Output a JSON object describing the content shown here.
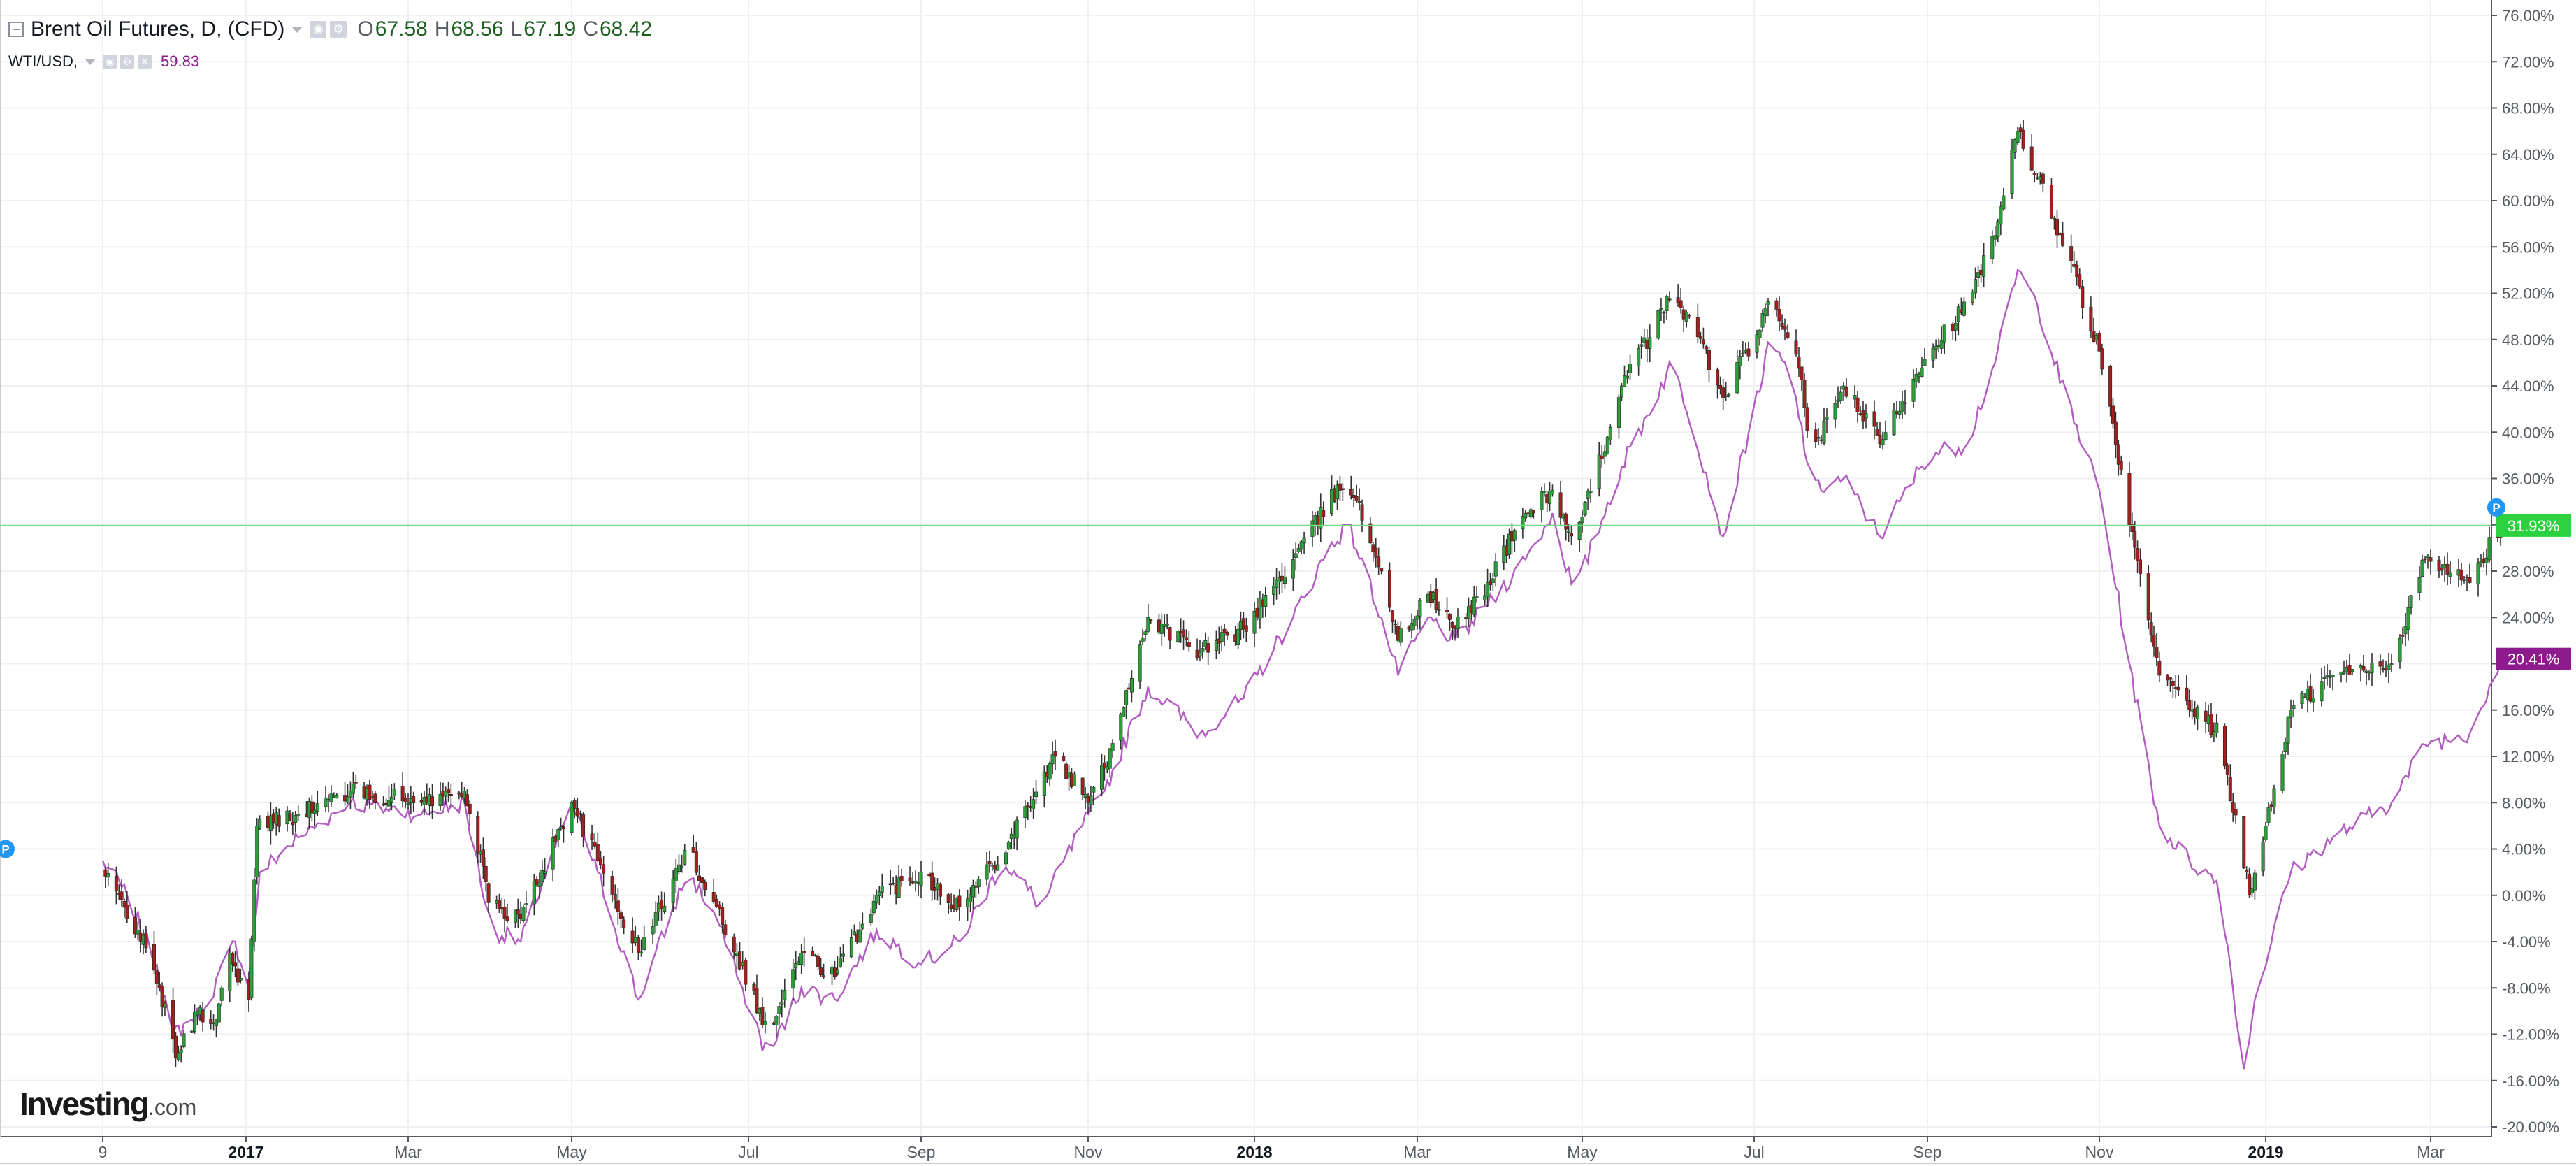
{
  "legend": {
    "main_title": "Brent Oil Futures, D, (CFD)",
    "ohlc": [
      {
        "key": "O",
        "value": "67.58"
      },
      {
        "key": "H",
        "value": "68.56"
      },
      {
        "key": "L",
        "value": "67.19"
      },
      {
        "key": "C",
        "value": "68.42"
      }
    ],
    "compare_title": "WTI/USD,",
    "compare_value": "59.83"
  },
  "logo": {
    "name": "Investing",
    "domain": ".com"
  },
  "colors": {
    "up": "#2e9e3b",
    "down": "#a31f1f",
    "wick": "#333333",
    "compare_line": "#b25bc0",
    "price_line": "#6fe07c",
    "price_badge": "#2bd13e",
    "compare_badge": "#8e1b8e",
    "grid": "#eef0f3"
  },
  "chart_data": {
    "type": "line",
    "title": "Brent Oil Futures, D, (CFD)",
    "y_axis": {
      "position": "right",
      "unit": "%",
      "range": [
        -20,
        76
      ],
      "ticks": [
        "76.00%",
        "72.00%",
        "68.00%",
        "64.00%",
        "60.00%",
        "56.00%",
        "52.00%",
        "48.00%",
        "44.00%",
        "40.00%",
        "36.00%",
        "32.00%",
        "28.00%",
        "24.00%",
        "20.00%",
        "16.00%",
        "12.00%",
        "8.00%",
        "4.00%",
        "0.00%",
        "-4.00%",
        "-8.00%",
        "-12.00%",
        "-16.00%",
        "-20.00%"
      ]
    },
    "x_axis": {
      "ticks": [
        {
          "label": "9",
          "bold": false
        },
        {
          "label": "2017",
          "bold": true
        },
        {
          "label": "Mar",
          "bold": false
        },
        {
          "label": "May",
          "bold": false
        },
        {
          "label": "Jul",
          "bold": false
        },
        {
          "label": "Sep",
          "bold": false
        },
        {
          "label": "Nov",
          "bold": false
        },
        {
          "label": "2018",
          "bold": true
        },
        {
          "label": "Mar",
          "bold": false
        },
        {
          "label": "May",
          "bold": false
        },
        {
          "label": "Jul",
          "bold": false
        },
        {
          "label": "Sep",
          "bold": false
        },
        {
          "label": "Nov",
          "bold": false
        },
        {
          "label": "2019",
          "bold": true
        },
        {
          "label": "Mar",
          "bold": false
        }
      ]
    },
    "grid": true,
    "series": [
      {
        "name": "Brent Oil Futures, D, (CFD)",
        "style": "candlestick",
        "key_points": [
          {
            "x": "2016-11-09",
            "y": 2
          },
          {
            "x": "2016-11-22",
            "y": -3
          },
          {
            "x": "2016-11-30",
            "y": -8
          },
          {
            "x": "2016-12-06",
            "y": -14
          },
          {
            "x": "2016-12-14",
            "y": -10
          },
          {
            "x": "2016-12-20",
            "y": -11
          },
          {
            "x": "2016-12-26",
            "y": -5
          },
          {
            "x": "2017-01-02",
            "y": -9
          },
          {
            "x": "2017-01-05",
            "y": 6
          },
          {
            "x": "2017-01-20",
            "y": 7
          },
          {
            "x": "2017-02-08",
            "y": 9
          },
          {
            "x": "2017-03-06",
            "y": 8
          },
          {
            "x": "2017-03-22",
            "y": 9
          },
          {
            "x": "2017-04-01",
            "y": -1
          },
          {
            "x": "2017-04-12",
            "y": -2
          },
          {
            "x": "2017-05-01",
            "y": 8
          },
          {
            "x": "2017-05-10",
            "y": 3
          },
          {
            "x": "2017-05-24",
            "y": -5
          },
          {
            "x": "2017-06-10",
            "y": 4
          },
          {
            "x": "2017-06-20",
            "y": -1
          },
          {
            "x": "2017-06-27",
            "y": -5
          },
          {
            "x": "2017-07-08",
            "y": -12
          },
          {
            "x": "2017-07-20",
            "y": -5
          },
          {
            "x": "2017-08-01",
            "y": -7
          },
          {
            "x": "2017-08-16",
            "y": 0
          },
          {
            "x": "2017-09-01",
            "y": 2
          },
          {
            "x": "2017-09-15",
            "y": -1
          },
          {
            "x": "2017-10-01",
            "y": 4
          },
          {
            "x": "2017-10-20",
            "y": 12
          },
          {
            "x": "2017-11-01",
            "y": 8
          },
          {
            "x": "2017-11-07",
            "y": 11
          },
          {
            "x": "2017-11-23",
            "y": 24
          },
          {
            "x": "2017-12-12",
            "y": 21
          },
          {
            "x": "2017-12-28",
            "y": 23
          },
          {
            "x": "2018-01-15",
            "y": 29
          },
          {
            "x": "2018-01-28",
            "y": 34
          },
          {
            "x": "2018-02-04",
            "y": 36
          },
          {
            "x": "2018-02-16",
            "y": 28
          },
          {
            "x": "2018-02-22",
            "y": 22
          },
          {
            "x": "2018-03-05",
            "y": 26
          },
          {
            "x": "2018-03-15",
            "y": 23
          },
          {
            "x": "2018-03-27",
            "y": 27
          },
          {
            "x": "2018-04-10",
            "y": 33
          },
          {
            "x": "2018-04-20",
            "y": 35
          },
          {
            "x": "2018-04-28",
            "y": 30
          },
          {
            "x": "2018-05-15",
            "y": 44
          },
          {
            "x": "2018-06-02",
            "y": 52
          },
          {
            "x": "2018-06-10",
            "y": 49
          },
          {
            "x": "2018-06-20",
            "y": 43
          },
          {
            "x": "2018-07-07",
            "y": 51
          },
          {
            "x": "2018-07-15",
            "y": 48
          },
          {
            "x": "2018-07-22",
            "y": 38
          },
          {
            "x": "2018-08-02",
            "y": 44
          },
          {
            "x": "2018-08-15",
            "y": 39
          },
          {
            "x": "2018-09-01",
            "y": 47
          },
          {
            "x": "2018-09-15",
            "y": 51
          },
          {
            "x": "2018-09-25",
            "y": 57
          },
          {
            "x": "2018-10-03",
            "y": 66
          },
          {
            "x": "2018-10-10",
            "y": 62
          },
          {
            "x": "2018-10-20",
            "y": 56
          },
          {
            "x": "2018-11-01",
            "y": 47
          },
          {
            "x": "2018-11-12",
            "y": 32
          },
          {
            "x": "2018-11-23",
            "y": 19
          },
          {
            "x": "2018-12-04",
            "y": 16
          },
          {
            "x": "2018-12-15",
            "y": 14
          },
          {
            "x": "2018-12-26",
            "y": 0
          },
          {
            "x": "2019-01-01",
            "y": 6
          },
          {
            "x": "2019-01-10",
            "y": 16
          },
          {
            "x": "2019-01-25",
            "y": 19
          },
          {
            "x": "2019-02-15",
            "y": 20
          },
          {
            "x": "2019-02-27",
            "y": 29
          },
          {
            "x": "2019-03-15",
            "y": 27
          },
          {
            "x": "2019-03-26",
            "y": 31.93
          }
        ]
      },
      {
        "name": "WTI/USD",
        "style": "line",
        "key_points": [
          {
            "x": "2016-11-09",
            "y": 3
          },
          {
            "x": "2016-11-18",
            "y": 0
          },
          {
            "x": "2016-11-29",
            "y": -6
          },
          {
            "x": "2016-12-05",
            "y": -12
          },
          {
            "x": "2016-12-16",
            "y": -10
          },
          {
            "x": "2016-12-28",
            "y": -4
          },
          {
            "x": "2017-01-02",
            "y": -8
          },
          {
            "x": "2017-01-06",
            "y": 2
          },
          {
            "x": "2017-01-20",
            "y": 5
          },
          {
            "x": "2017-02-08",
            "y": 8
          },
          {
            "x": "2017-03-06",
            "y": 7
          },
          {
            "x": "2017-03-22",
            "y": 8
          },
          {
            "x": "2017-04-01",
            "y": -3
          },
          {
            "x": "2017-04-12",
            "y": -4
          },
          {
            "x": "2017-05-01",
            "y": 8
          },
          {
            "x": "2017-05-10",
            "y": 2
          },
          {
            "x": "2017-05-24",
            "y": -9
          },
          {
            "x": "2017-06-10",
            "y": 2
          },
          {
            "x": "2017-06-20",
            "y": -2
          },
          {
            "x": "2017-06-27",
            "y": -7
          },
          {
            "x": "2017-07-08",
            "y": -14
          },
          {
            "x": "2017-07-20",
            "y": -8
          },
          {
            "x": "2017-08-01",
            "y": -9
          },
          {
            "x": "2017-08-16",
            "y": -3
          },
          {
            "x": "2017-09-01",
            "y": -6
          },
          {
            "x": "2017-09-15",
            "y": -4
          },
          {
            "x": "2017-10-01",
            "y": 3
          },
          {
            "x": "2017-10-15",
            "y": -1
          },
          {
            "x": "2017-11-01",
            "y": 7
          },
          {
            "x": "2017-11-07",
            "y": 9
          },
          {
            "x": "2017-11-23",
            "y": 18
          },
          {
            "x": "2017-12-12",
            "y": 14
          },
          {
            "x": "2017-12-28",
            "y": 17
          },
          {
            "x": "2018-01-15",
            "y": 24
          },
          {
            "x": "2018-01-28",
            "y": 30
          },
          {
            "x": "2018-02-04",
            "y": 32
          },
          {
            "x": "2018-02-16",
            "y": 24
          },
          {
            "x": "2018-02-22",
            "y": 19
          },
          {
            "x": "2018-03-05",
            "y": 24
          },
          {
            "x": "2018-03-15",
            "y": 22
          },
          {
            "x": "2018-03-27",
            "y": 25
          },
          {
            "x": "2018-04-10",
            "y": 29
          },
          {
            "x": "2018-04-20",
            "y": 33
          },
          {
            "x": "2018-04-28",
            "y": 26
          },
          {
            "x": "2018-05-15",
            "y": 37
          },
          {
            "x": "2018-06-02",
            "y": 46
          },
          {
            "x": "2018-06-10",
            "y": 40
          },
          {
            "x": "2018-06-20",
            "y": 31
          },
          {
            "x": "2018-07-07",
            "y": 48
          },
          {
            "x": "2018-07-15",
            "y": 44
          },
          {
            "x": "2018-07-22",
            "y": 35
          },
          {
            "x": "2018-08-02",
            "y": 36
          },
          {
            "x": "2018-08-15",
            "y": 31
          },
          {
            "x": "2018-09-01",
            "y": 38
          },
          {
            "x": "2018-09-15",
            "y": 39
          },
          {
            "x": "2018-09-25",
            "y": 46
          },
          {
            "x": "2018-10-03",
            "y": 54
          },
          {
            "x": "2018-10-10",
            "y": 51
          },
          {
            "x": "2018-10-20",
            "y": 43
          },
          {
            "x": "2018-11-01",
            "y": 35
          },
          {
            "x": "2018-11-12",
            "y": 20
          },
          {
            "x": "2018-11-23",
            "y": 6
          },
          {
            "x": "2018-12-04",
            "y": 3
          },
          {
            "x": "2018-12-15",
            "y": 1
          },
          {
            "x": "2018-12-24",
            "y": -15
          },
          {
            "x": "2018-12-28",
            "y": -9
          },
          {
            "x": "2019-01-10",
            "y": 2
          },
          {
            "x": "2019-01-25",
            "y": 5
          },
          {
            "x": "2019-02-15",
            "y": 8
          },
          {
            "x": "2019-02-27",
            "y": 13
          },
          {
            "x": "2019-03-15",
            "y": 14
          },
          {
            "x": "2019-03-26",
            "y": 20.41
          }
        ]
      }
    ],
    "markers": [
      {
        "label": "31.93%",
        "series": "Brent Oil Futures, D, (CFD)",
        "value": 31.93
      },
      {
        "label": "20.41%",
        "series": "WTI/USD",
        "value": 20.41
      }
    ],
    "flags": [
      {
        "label": "P",
        "x": "2016-11-09",
        "value": 4
      },
      {
        "label": "P",
        "x": "2019-03-26",
        "value": 33.5
      }
    ]
  }
}
